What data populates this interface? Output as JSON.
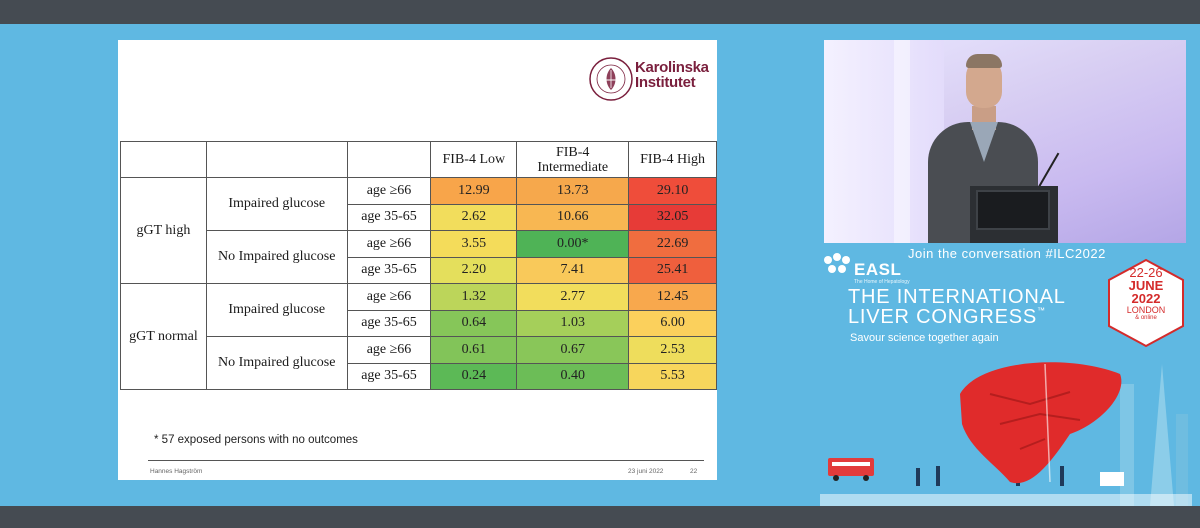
{
  "slide": {
    "logo": {
      "name": "Karolinska Institutet",
      "line1": "Karolinska",
      "line2": "Institutet",
      "seal_text": "KAROLINSKA INSTITUTET ANNO 1810",
      "color": "#7a1f3d"
    },
    "table": {
      "headers": [
        "FIB-4 Low",
        "FIB-4 Intermediate",
        "FIB-4 High"
      ],
      "header_lines": [
        [
          "FIB-4 Low"
        ],
        [
          "FIB-4",
          "Intermediate"
        ],
        [
          "FIB-4 High"
        ]
      ],
      "groups": [
        {
          "label": "gGT high",
          "subgroups": [
            {
              "label": "Impaired glucose",
              "rows": [
                {
                  "age": "age ≥66",
                  "values": [
                    "12.99",
                    "13.73",
                    "29.10"
                  ],
                  "colors": [
                    "#f8a54a",
                    "#f6a84c",
                    "#ef4d3a"
                  ]
                },
                {
                  "age": "age 35-65",
                  "values": [
                    "2.62",
                    "10.66",
                    "32.05"
                  ],
                  "colors": [
                    "#f2dd5c",
                    "#f8b752",
                    "#e73b37"
                  ]
                }
              ]
            },
            {
              "label": "No Impaired glucose",
              "rows": [
                {
                  "age": "age ≥66",
                  "values": [
                    "3.55",
                    "0.00*",
                    "22.69"
                  ],
                  "colors": [
                    "#f4dc5a",
                    "#4fb356",
                    "#f06d3f"
                  ]
                },
                {
                  "age": "age 35-65",
                  "values": [
                    "2.20",
                    "7.41",
                    "25.41"
                  ],
                  "colors": [
                    "#e4df5c",
                    "#f9c95a",
                    "#ef5f3d"
                  ]
                }
              ]
            }
          ]
        },
        {
          "label": "gGT normal",
          "subgroups": [
            {
              "label": "Impaired glucose",
              "rows": [
                {
                  "age": "age ≥66",
                  "values": [
                    "1.32",
                    "2.77",
                    "12.45"
                  ],
                  "colors": [
                    "#bcd55a",
                    "#f2dd5c",
                    "#f8a84d"
                  ]
                },
                {
                  "age": "age 35-65",
                  "values": [
                    "0.64",
                    "1.03",
                    "6.00"
                  ],
                  "colors": [
                    "#86c659",
                    "#a5cf5a",
                    "#fbd05c"
                  ]
                }
              ]
            },
            {
              "label": "No Impaired glucose",
              "rows": [
                {
                  "age": "age ≥66",
                  "values": [
                    "0.61",
                    "0.67",
                    "2.53"
                  ],
                  "colors": [
                    "#82c459",
                    "#89c659",
                    "#eedd5c"
                  ]
                },
                {
                  "age": "age 35-65",
                  "values": [
                    "0.24",
                    "0.40",
                    "5.53"
                  ],
                  "colors": [
                    "#5cb956",
                    "#6cbd57",
                    "#f7d65c"
                  ]
                }
              ]
            }
          ]
        }
      ]
    },
    "footnote": "* 57 exposed persons with no outcomes",
    "footer": {
      "author": "Hannes Hagström",
      "date": "23 juni 2022",
      "page": "22"
    }
  },
  "branding": {
    "hashtag": "Join the conversation #ILC2022",
    "org": "EASL",
    "org_sub": "The Home of Hepatology",
    "congress_line1": "THE INTERNATIONAL",
    "congress_line2": "LIVER CONGRESS",
    "tagline": "Savour science together again",
    "dates": "22-26",
    "month": "JUNE",
    "year": "2022",
    "city": "LONDON",
    "mode": "& online",
    "accent": "#d42b2b"
  }
}
